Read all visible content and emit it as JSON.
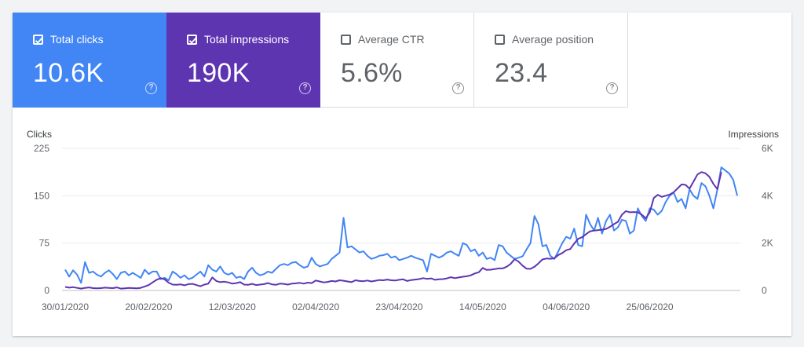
{
  "colors": {
    "clicks": "#4285f4",
    "impressions": "#5e35b1",
    "grid": "#e8eaed",
    "text": "#5f6368"
  },
  "metrics": [
    {
      "id": "clicks",
      "label": "Total clicks",
      "value": "10.6K",
      "checked": true
    },
    {
      "id": "impressions",
      "label": "Total impressions",
      "value": "190K",
      "checked": true
    },
    {
      "id": "ctr",
      "label": "Average CTR",
      "value": "5.6%",
      "checked": false
    },
    {
      "id": "position",
      "label": "Average position",
      "value": "23.4",
      "checked": false
    }
  ],
  "help_icon": "?",
  "chart_data": {
    "type": "line",
    "y_left_title": "Clicks",
    "y_right_title": "Impressions",
    "y_left_ticks": [
      "0",
      "75",
      "150",
      "225"
    ],
    "y_right_ticks": [
      "0",
      "2K",
      "4K",
      "6K"
    ],
    "y_left_range": [
      0,
      225
    ],
    "y_right_range": [
      0,
      6000
    ],
    "x_tick_labels": [
      "30/01/2020",
      "20/02/2020",
      "12/03/2020",
      "02/04/2020",
      "23/04/2020",
      "14/05/2020",
      "04/06/2020",
      "25/06/2020"
    ],
    "x_tick_index": [
      0,
      21,
      42,
      63,
      84,
      105,
      126,
      147
    ],
    "x_count": 170,
    "grid": true,
    "series": [
      {
        "name": "Clicks",
        "axis": "left",
        "values": [
          33,
          22,
          32,
          25,
          12,
          45,
          28,
          30,
          25,
          22,
          28,
          32,
          26,
          18,
          28,
          30,
          24,
          28,
          24,
          20,
          33,
          26,
          30,
          30,
          18,
          20,
          16,
          30,
          26,
          20,
          24,
          18,
          20,
          25,
          30,
          22,
          40,
          33,
          30,
          38,
          28,
          25,
          28,
          20,
          22,
          18,
          30,
          36,
          28,
          24,
          26,
          30,
          28,
          34,
          40,
          42,
          40,
          44,
          45,
          40,
          36,
          38,
          52,
          42,
          38,
          40,
          42,
          50,
          55,
          60,
          115,
          68,
          70,
          65,
          60,
          62,
          55,
          50,
          52,
          55,
          56,
          58,
          52,
          54,
          48,
          50,
          52,
          55,
          52,
          50,
          48,
          30,
          58,
          55,
          52,
          55,
          60,
          62,
          58,
          55,
          75,
          72,
          62,
          65,
          55,
          60,
          50,
          52,
          48,
          72,
          70,
          60,
          55,
          50,
          52,
          54,
          65,
          75,
          118,
          105,
          70,
          72,
          55,
          50,
          62,
          75,
          85,
          82,
          98,
          72,
          70,
          120,
          105,
          95,
          115,
          90,
          110,
          120,
          95,
          100,
          112,
          110,
          90,
          95,
          130,
          118,
          110,
          130,
          128,
          120,
          126,
          140,
          150,
          155,
          140,
          145,
          130,
          160,
          150,
          145,
          170,
          165,
          150,
          130,
          160,
          195,
          190,
          185,
          175,
          150
        ]
      },
      {
        "name": "Impressions",
        "axis": "right",
        "values": [
          150,
          120,
          140,
          110,
          80,
          110,
          130,
          100,
          90,
          100,
          120,
          110,
          100,
          130,
          80,
          90,
          110,
          100,
          90,
          110,
          170,
          230,
          340,
          450,
          520,
          470,
          330,
          250,
          240,
          260,
          220,
          270,
          280,
          230,
          180,
          250,
          290,
          550,
          400,
          350,
          370,
          340,
          290,
          310,
          350,
          250,
          240,
          280,
          230,
          250,
          270,
          310,
          260,
          240,
          290,
          280,
          250,
          290,
          300,
          320,
          290,
          330,
          310,
          420,
          380,
          340,
          360,
          400,
          380,
          430,
          410,
          380,
          350,
          430,
          400,
          390,
          420,
          380,
          410,
          440,
          430,
          460,
          430,
          420,
          450,
          470,
          400,
          440,
          460,
          480,
          520,
          490,
          510,
          450,
          470,
          480,
          510,
          560,
          520,
          550,
          580,
          600,
          640,
          720,
          770,
          950,
          870,
          880,
          900,
          930,
          930,
          1000,
          1120,
          1320,
          1220,
          1050,
          920,
          910,
          1000,
          1140,
          1310,
          1350,
          1340,
          1360,
          1500,
          1580,
          1700,
          1750,
          1980,
          2180,
          2250,
          2380,
          2500,
          2530,
          2550,
          2570,
          2600,
          2690,
          2800,
          2900,
          3200,
          3350,
          3300,
          3310,
          3300,
          3200,
          3050,
          3300,
          3900,
          4040,
          3950,
          4000,
          4050,
          4150,
          4310,
          4480,
          4460,
          4300,
          4600,
          4900,
          5000,
          4950,
          4800,
          4500,
          4280,
          5000
        ]
      }
    ]
  }
}
